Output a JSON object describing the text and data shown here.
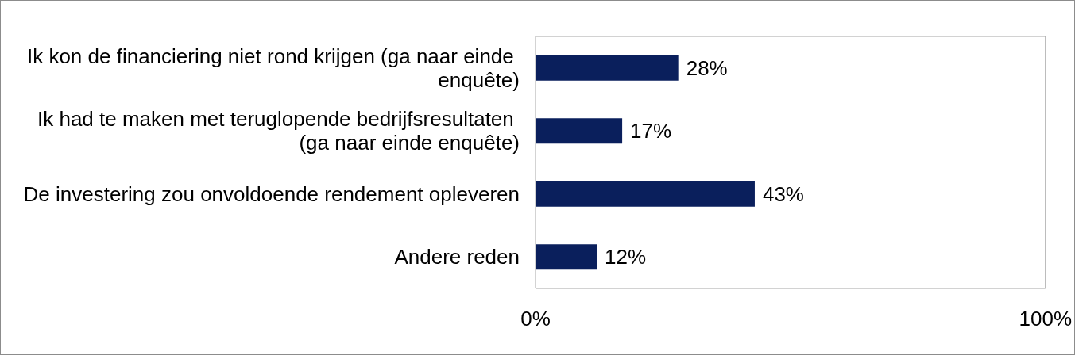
{
  "chart_data": {
    "type": "bar",
    "orientation": "horizontal",
    "categories": [
      "Ik kon de financiering niet rond krijgen (ga naar einde enquête)",
      "Ik had te maken met teruglopende bedrijfsresultaten (ga naar einde enquête)",
      "De investering zou onvoldoende rendement opleveren",
      "Andere reden"
    ],
    "values": [
      28,
      17,
      43,
      12
    ],
    "value_labels": [
      "28%",
      "17%",
      "43%",
      "12%"
    ],
    "color": "#0a1f5c",
    "xlim": [
      0,
      100
    ],
    "xticks": [
      {
        "value": 0,
        "label": "0%"
      },
      {
        "value": 100,
        "label": "100%"
      }
    ],
    "grid": false
  }
}
